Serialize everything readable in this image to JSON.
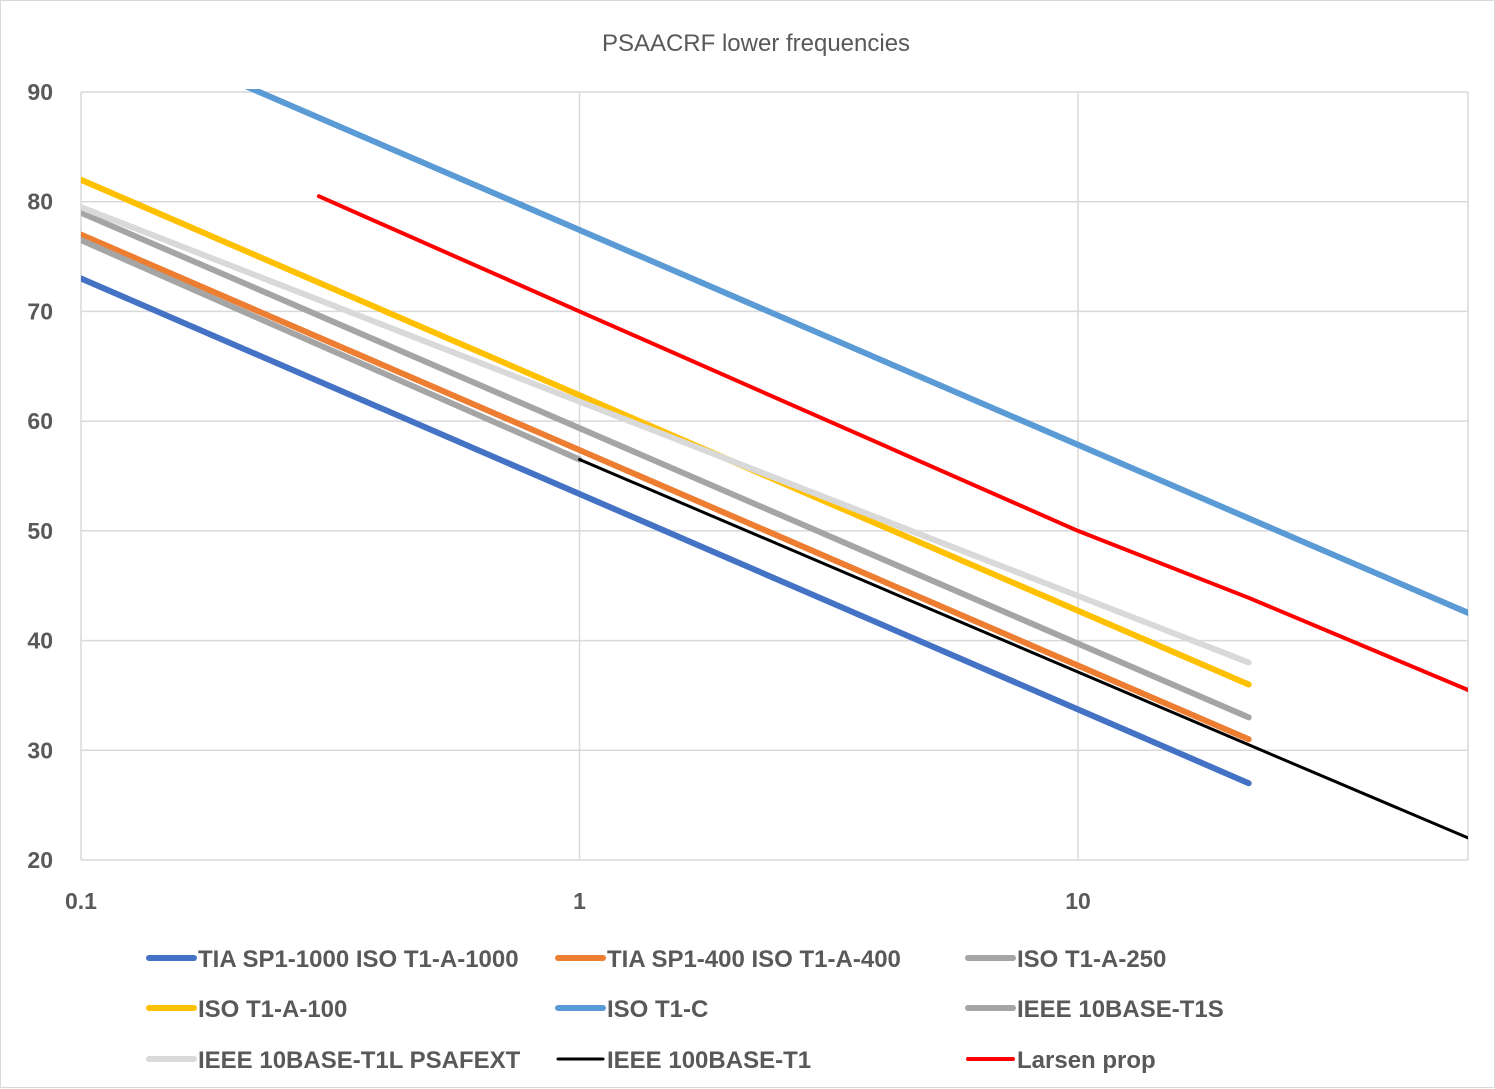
{
  "chart_data": {
    "type": "line",
    "title": "PSAACRF lower frequencies",
    "xlabel": "",
    "ylabel": "",
    "x_scale": "log",
    "xlim": [
      0.1,
      70
    ],
    "ylim": [
      20,
      90
    ],
    "y_ticks": [
      "20",
      "30",
      "40",
      "50",
      "60",
      "70",
      "80",
      "90"
    ],
    "x_ticks": [
      "0.1",
      "1",
      "10"
    ],
    "grid": true,
    "legend_position": "bottom",
    "series": [
      {
        "name": "TIA SP1-1000 ISO T1-A-1000",
        "color": "#4472c4",
        "width": 6,
        "points": [
          [
            0.1,
            73
          ],
          [
            22,
            27
          ]
        ]
      },
      {
        "name": "TIA SP1-400 ISO T1-A-400",
        "color": "#ed7d31",
        "width": 6,
        "points": [
          [
            0.1,
            77
          ],
          [
            22,
            31
          ]
        ]
      },
      {
        "name": "ISO T1-A-250",
        "color": "#a5a5a5",
        "width": 6,
        "points": [
          [
            0.1,
            79
          ],
          [
            22,
            33
          ]
        ]
      },
      {
        "name": "ISO T1-A-100",
        "color": "#ffc000",
        "width": 6,
        "points": [
          [
            0.1,
            82
          ],
          [
            22,
            36
          ]
        ]
      },
      {
        "name": "ISO T1-C",
        "color": "#5b9bd5",
        "width": 6,
        "points": [
          [
            0.1,
            97
          ],
          [
            70,
            41.3
          ]
        ]
      },
      {
        "name": "IEEE 10BASE-T1S",
        "color": "#a5a5a5",
        "width": 6,
        "points": [
          [
            0.1,
            76.5
          ],
          [
            1,
            56.5
          ]
        ]
      },
      {
        "name": "IEEE 10BASE-T1L PSAFEXT",
        "color": "#d9d9d9",
        "width": 6,
        "points": [
          [
            0.1,
            79.5
          ],
          [
            22,
            38
          ]
        ]
      },
      {
        "name": "IEEE 100BASE-T1",
        "color": "#000000",
        "width": 3,
        "points": [
          [
            1,
            56.5
          ],
          [
            22,
            30.5
          ],
          [
            70,
            20.8
          ]
        ]
      },
      {
        "name": "Larsen prop",
        "color": "#ff0000",
        "width": 4,
        "points": [
          [
            0.3,
            80.5
          ],
          [
            1,
            70
          ],
          [
            10,
            50
          ],
          [
            22,
            43.9
          ],
          [
            70,
            34.3
          ]
        ]
      }
    ]
  }
}
